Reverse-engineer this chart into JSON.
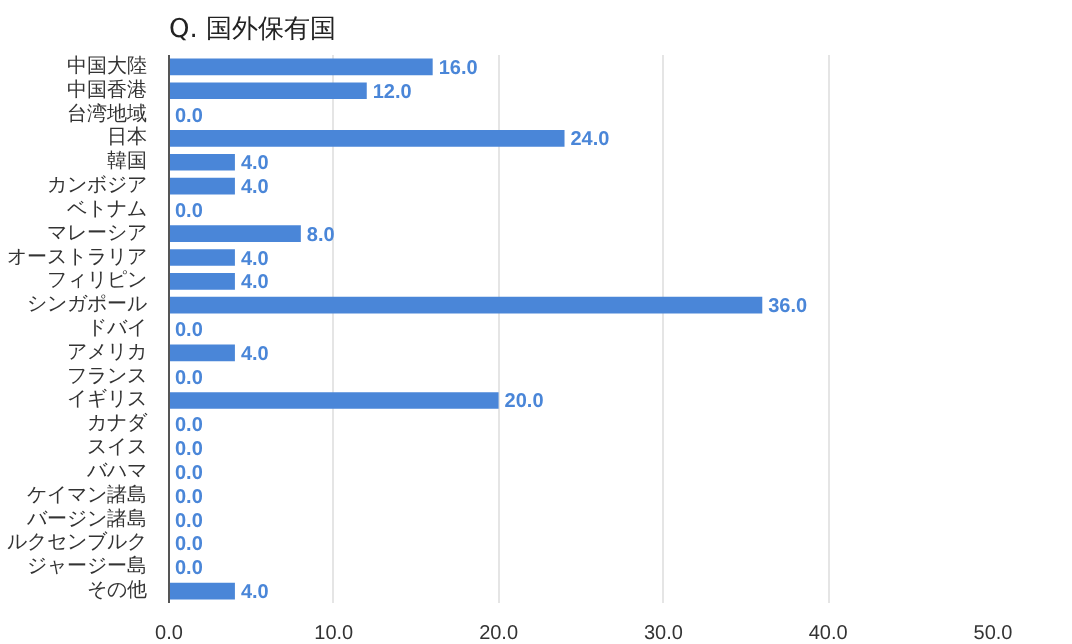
{
  "chart_data": {
    "type": "bar",
    "orientation": "horizontal",
    "title": "Q. 国外保有国",
    "categories": [
      "中国大陸",
      "中国香港",
      "台湾地域",
      "日本",
      "韓国",
      "カンボジア",
      "ベトナム",
      "マレーシア",
      "オーストラリア",
      "フィリピン",
      "シンガポール",
      "ドバイ",
      "アメリカ",
      "フランス",
      "イギリス",
      "カナダ",
      "スイス",
      "バハマ",
      "ケイマン諸島",
      "バージン諸島",
      "ルクセンブルク",
      "ジャージー島",
      "その他"
    ],
    "values": [
      16.0,
      12.0,
      0.0,
      24.0,
      4.0,
      4.0,
      0.0,
      8.0,
      4.0,
      4.0,
      36.0,
      0.0,
      4.0,
      0.0,
      20.0,
      0.0,
      0.0,
      0.0,
      0.0,
      0.0,
      0.0,
      0.0,
      4.0
    ],
    "color": "#4a86d8",
    "xlim": [
      0,
      50
    ],
    "xticks": [
      {
        "value": 0,
        "label": "0.0"
      },
      {
        "value": 10,
        "label": "10.0"
      },
      {
        "value": 20,
        "label": "20.0"
      },
      {
        "value": 30,
        "label": "30.0"
      },
      {
        "value": 40,
        "label": "40.0"
      },
      {
        "value": 50,
        "label": "50.0"
      }
    ],
    "grid": "x",
    "value_labels": [
      "16.0",
      "12.0",
      "0.0",
      "24.0",
      "4.0",
      "4.0",
      "0.0",
      "8.0",
      "4.0",
      "4.0",
      "36.0",
      "0.0",
      "4.0",
      "0.0",
      "20.0",
      "0.0",
      "0.0",
      "0.0",
      "0.0",
      "0.0",
      "0.0",
      "0.0",
      "4.0"
    ]
  }
}
